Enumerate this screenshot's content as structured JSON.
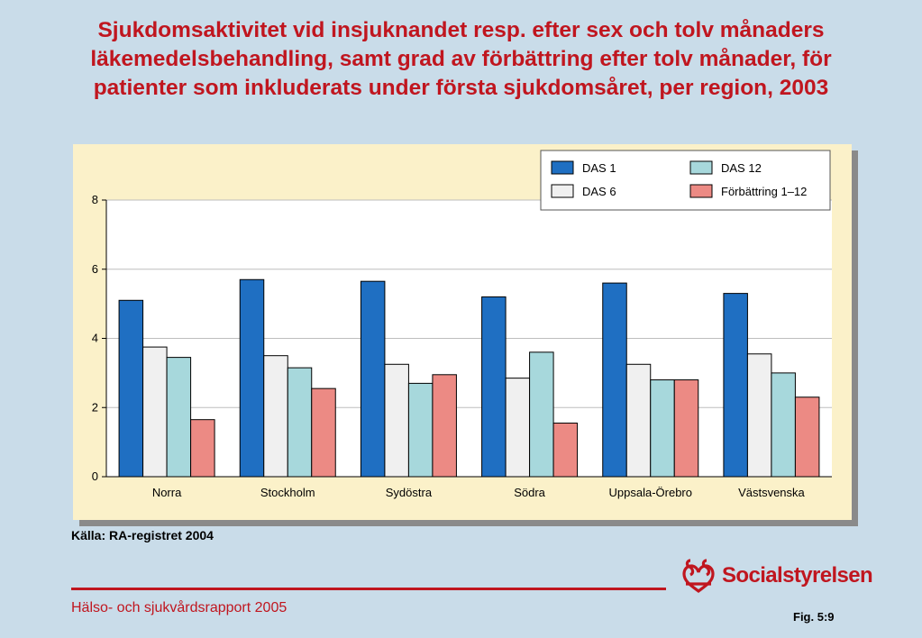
{
  "title_lines": [
    "Sjukdomsaktivitet vid insjuknandet resp. efter sex och tolv månaders",
    "läkemedelsbehandling, samt grad av förbättring efter tolv månader, för",
    "patienter som inkluderats under första sjukdomsåret, per region, 2003"
  ],
  "source": "Källa: RA-registret 2004",
  "footer": "Hälso- och sjukvårdsrapport 2005",
  "figure_label": "Fig. 5:9",
  "logo_text": "Socialstyrelsen",
  "colors": {
    "title": "#c0161f",
    "background": "#c9dce9",
    "plot_panel": "#fbf1c9",
    "plot_area": "#ffffff"
  },
  "chart_data": {
    "type": "bar",
    "title": "",
    "xlabel": "",
    "ylabel": "",
    "ylim": [
      0,
      8
    ],
    "yticks": [
      0,
      2,
      4,
      6,
      8
    ],
    "grid": true,
    "legend_position": "top-right",
    "categories": [
      "Norra",
      "Stockholm",
      "Sydöstra",
      "Södra",
      "Uppsala-Örebro",
      "Västsvenska"
    ],
    "series": [
      {
        "name": "DAS 1",
        "color": "#1f6fc2",
        "values": [
          5.1,
          5.7,
          5.65,
          5.2,
          5.6,
          5.3
        ]
      },
      {
        "name": "DAS 6",
        "color": "#f0f0f0",
        "values": [
          3.75,
          3.5,
          3.25,
          2.85,
          3.25,
          3.55
        ]
      },
      {
        "name": "DAS 12",
        "color": "#a7d8dc",
        "values": [
          3.45,
          3.15,
          2.7,
          3.6,
          2.8,
          3.0
        ]
      },
      {
        "name": "Förbättring 1–12",
        "color": "#ec8a84",
        "values": [
          1.65,
          2.55,
          2.95,
          1.55,
          2.8,
          2.3
        ]
      }
    ]
  }
}
